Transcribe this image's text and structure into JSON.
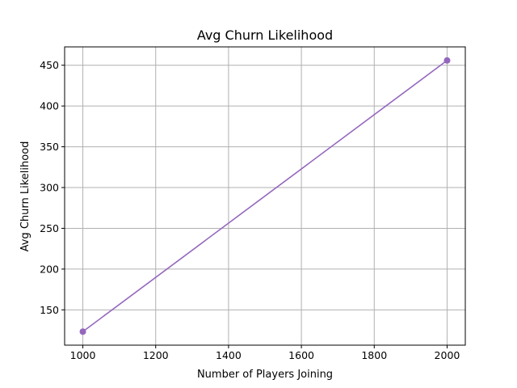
{
  "chart_data": {
    "type": "line",
    "title": "Avg Churn Likelihood",
    "xlabel": "Number of Players Joining",
    "ylabel": "Avg Churn Likelihood",
    "xlim": [
      950,
      2050
    ],
    "ylim": [
      106.7,
      472.5
    ],
    "xticks": [
      1000,
      1200,
      1400,
      1600,
      1800,
      2000
    ],
    "yticks": [
      150,
      200,
      250,
      300,
      350,
      400,
      450
    ],
    "grid": true,
    "series": [
      {
        "color": "#9467bd",
        "marker": "circle",
        "x": [
          1000,
          2000
        ],
        "y": [
          123.3,
          455.9
        ]
      }
    ]
  }
}
